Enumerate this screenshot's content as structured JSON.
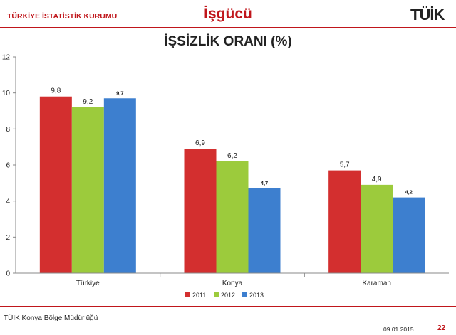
{
  "header": {
    "organization": "TÜRKİYE İSTATİSTİK KURUMU",
    "section": "İşgücü",
    "logo_text": "TÜİK"
  },
  "footer": {
    "office": "TÜİK Konya Bölge Müdürlüğü",
    "date": "09.01.2015",
    "page": "22"
  },
  "chart_data": {
    "type": "bar",
    "title": "İŞSİZLİK ORANI (%)",
    "categories": [
      "Türkiye",
      "Konya",
      "Karaman"
    ],
    "series": [
      {
        "name": "2011",
        "color": "#d32f2f",
        "values": [
          9.8,
          6.9,
          5.7
        ],
        "labels": [
          "9,8",
          "6,9",
          "5,7"
        ]
      },
      {
        "name": "2012",
        "color": "#9ccb3c",
        "values": [
          9.2,
          6.2,
          4.9
        ],
        "labels": [
          "9,2",
          "6,2",
          "4,9"
        ]
      },
      {
        "name": "2013",
        "color": "#3d7fcf",
        "values": [
          9.7,
          4.7,
          4.2
        ],
        "labels": [
          "9,7",
          "4,7",
          "4,2"
        ]
      }
    ],
    "ylim": [
      0,
      12
    ],
    "yticks": [
      0,
      2,
      4,
      6,
      8,
      10,
      12
    ],
    "xlabel": "",
    "ylabel": "",
    "legend": "bottom",
    "grid": false
  }
}
